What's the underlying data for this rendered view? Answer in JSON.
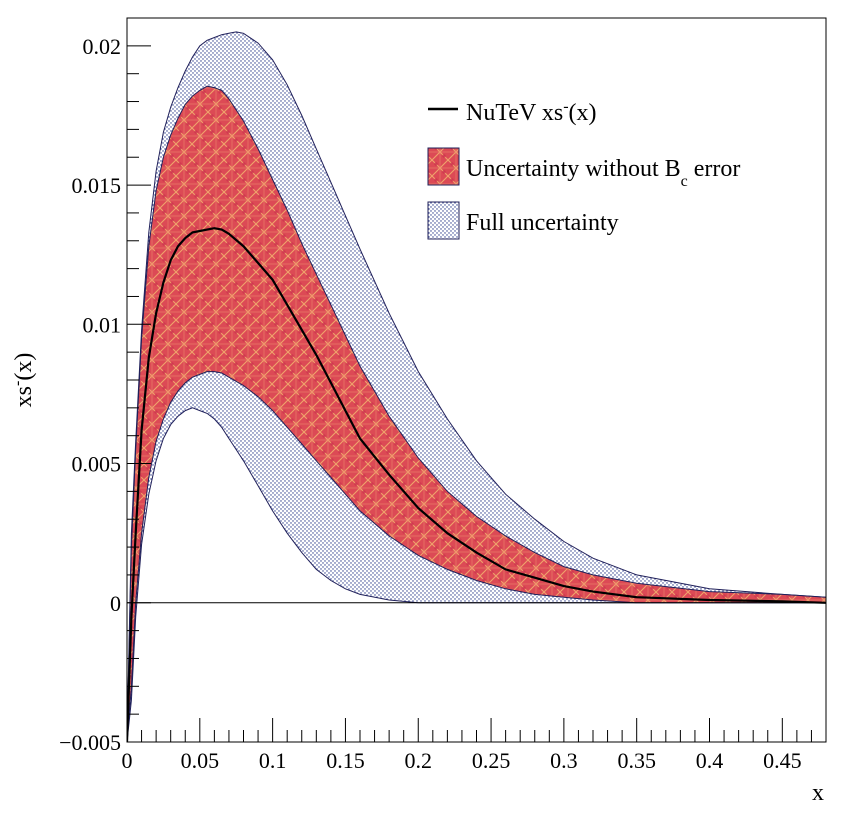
{
  "chart_data": {
    "type": "line",
    "title": "",
    "xlabel": "x",
    "ylabel_main": "xs",
    "ylabel_sup": "-",
    "ylabel_tail": "(x)",
    "xlim": [
      0,
      0.48
    ],
    "ylim": [
      -0.005,
      0.021
    ],
    "x_ticks": [
      0,
      0.05,
      0.1,
      0.15,
      0.2,
      0.25,
      0.3,
      0.35,
      0.4,
      0.45
    ],
    "x_tick_labels": [
      "0",
      "0.05",
      "0.1",
      "0.15",
      "0.2",
      "0.25",
      "0.3",
      "0.35",
      "0.4",
      "0.45"
    ],
    "y_ticks": [
      -0.005,
      0,
      0.005,
      0.01,
      0.015,
      0.02
    ],
    "y_tick_labels": [
      "−0.005",
      "0",
      "0.005",
      "0.01",
      "0.015",
      "0.02"
    ],
    "zero_line": true,
    "legend": {
      "position": "top-right",
      "entries": [
        {
          "label": "NuTeV xs",
          "sup": "-",
          "tail": "(x)",
          "style": "line"
        },
        {
          "label": "Uncertainty without B",
          "sub": "c",
          "tail": " error",
          "style": "red-fill"
        },
        {
          "label": "Full uncertainty",
          "style": "dotted-fill"
        }
      ]
    },
    "colors": {
      "central_line": "#000000",
      "inner_band": "#d9434e",
      "inner_band_hatch": "#f4c06a",
      "outer_band_dots": "#2a3a8a",
      "band_edge": "#20205a",
      "axis": "#000000"
    },
    "series": [
      {
        "name": "NuTeV xs-(x)",
        "x": [
          0.0,
          0.003,
          0.006,
          0.01,
          0.015,
          0.02,
          0.025,
          0.03,
          0.035,
          0.04,
          0.045,
          0.05,
          0.055,
          0.06,
          0.065,
          0.07,
          0.08,
          0.09,
          0.1,
          0.11,
          0.12,
          0.13,
          0.14,
          0.15,
          0.16,
          0.18,
          0.2,
          0.22,
          0.24,
          0.26,
          0.28,
          0.3,
          0.32,
          0.35,
          0.4,
          0.45,
          0.48
        ],
        "values": [
          -0.005,
          -0.0005,
          0.0025,
          0.0062,
          0.0088,
          0.0104,
          0.0115,
          0.0123,
          0.0128,
          0.0131,
          0.0133,
          0.01335,
          0.0134,
          0.01345,
          0.0134,
          0.01325,
          0.0128,
          0.0122,
          0.0116,
          0.0107,
          0.0098,
          0.0089,
          0.0079,
          0.0069,
          0.0059,
          0.0046,
          0.0034,
          0.0025,
          0.0018,
          0.0012,
          0.0009,
          0.0006,
          0.0004,
          0.0002,
          0.0001,
          5e-05,
          0.0
        ]
      },
      {
        "name": "Uncertainty without Bc error",
        "x": [
          0.0,
          0.003,
          0.006,
          0.01,
          0.015,
          0.02,
          0.025,
          0.03,
          0.035,
          0.04,
          0.045,
          0.05,
          0.055,
          0.06,
          0.065,
          0.07,
          0.08,
          0.09,
          0.1,
          0.11,
          0.12,
          0.13,
          0.14,
          0.15,
          0.16,
          0.18,
          0.2,
          0.22,
          0.24,
          0.26,
          0.28,
          0.3,
          0.32,
          0.35,
          0.4,
          0.45,
          0.48
        ],
        "upper": [
          -0.005,
          0.002,
          0.0055,
          0.0095,
          0.0128,
          0.0148,
          0.016,
          0.0168,
          0.0174,
          0.0179,
          0.0182,
          0.0184,
          0.01855,
          0.0185,
          0.0184,
          0.0181,
          0.0173,
          0.0163,
          0.0152,
          0.0141,
          0.0129,
          0.0118,
          0.0107,
          0.0096,
          0.0085,
          0.0067,
          0.0052,
          0.004,
          0.0031,
          0.0024,
          0.0018,
          0.0013,
          0.001,
          0.0007,
          0.0004,
          0.0003,
          0.0002
        ],
        "lower": [
          -0.005,
          -0.003,
          0.0,
          0.0025,
          0.0045,
          0.0058,
          0.0066,
          0.0072,
          0.0076,
          0.0079,
          0.0081,
          0.0082,
          0.0083,
          0.0083,
          0.00825,
          0.0081,
          0.0078,
          0.0074,
          0.0069,
          0.0063,
          0.0057,
          0.0051,
          0.0045,
          0.0039,
          0.0033,
          0.0024,
          0.0017,
          0.0012,
          0.0008,
          0.0005,
          0.0003,
          0.0002,
          0.0001,
          0.0,
          0.0,
          0.0,
          0.0
        ]
      },
      {
        "name": "Full uncertainty",
        "x": [
          0.0,
          0.003,
          0.006,
          0.01,
          0.015,
          0.02,
          0.025,
          0.03,
          0.035,
          0.04,
          0.045,
          0.05,
          0.055,
          0.06,
          0.065,
          0.07,
          0.075,
          0.08,
          0.09,
          0.1,
          0.11,
          0.12,
          0.13,
          0.14,
          0.15,
          0.16,
          0.18,
          0.2,
          0.22,
          0.24,
          0.26,
          0.28,
          0.3,
          0.32,
          0.35,
          0.4,
          0.45,
          0.48
        ],
        "upper": [
          -0.005,
          0.0025,
          0.0058,
          0.0098,
          0.0133,
          0.0155,
          0.0169,
          0.0178,
          0.0185,
          0.0191,
          0.0196,
          0.02,
          0.0202,
          0.0203,
          0.0204,
          0.02045,
          0.0205,
          0.02045,
          0.0201,
          0.0195,
          0.0186,
          0.0175,
          0.0163,
          0.0151,
          0.0139,
          0.0127,
          0.0104,
          0.0083,
          0.0066,
          0.0051,
          0.0039,
          0.003,
          0.0022,
          0.0016,
          0.001,
          0.0005,
          0.0003,
          0.0002
        ],
        "lower": [
          -0.005,
          -0.0035,
          -0.0005,
          0.0021,
          0.0039,
          0.0051,
          0.0059,
          0.0064,
          0.0067,
          0.0069,
          0.007,
          0.0069,
          0.0068,
          0.0066,
          0.0063,
          0.0059,
          0.0055,
          0.0051,
          0.0042,
          0.0033,
          0.0025,
          0.0018,
          0.0012,
          0.0008,
          0.0005,
          0.0003,
          0.0001,
          0.0,
          0.0,
          0.0,
          0.0,
          0.0,
          0.0,
          0.0,
          0.0,
          0.0,
          0.0,
          0.0
        ]
      }
    ]
  }
}
